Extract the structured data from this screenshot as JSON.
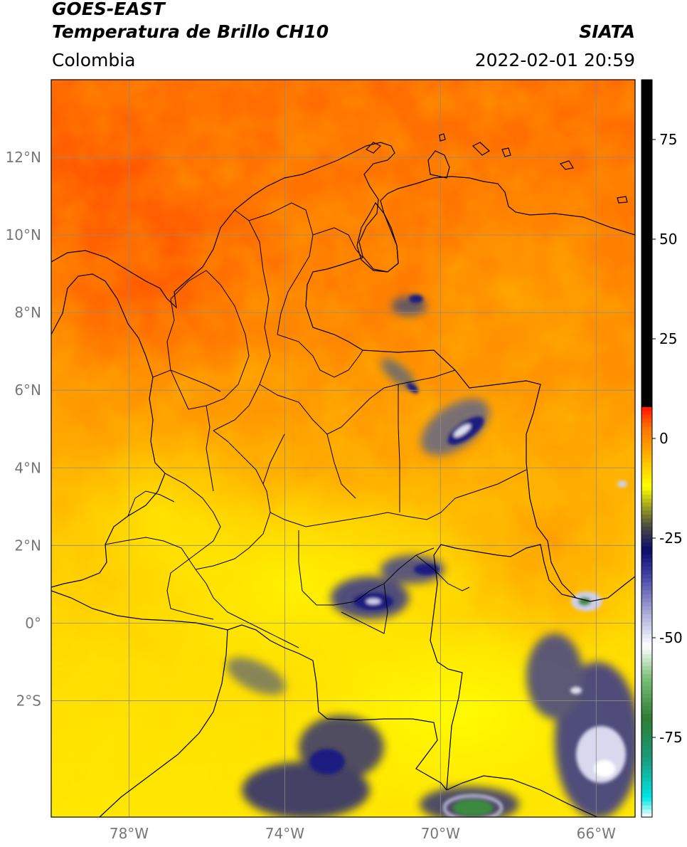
{
  "header": {
    "satellite": "GOES-EAST",
    "product": "Temperatura de Brillo CH10",
    "organization": "SIATA",
    "region": "Colombia",
    "timestamp": "2022-02-01 20:59"
  },
  "map": {
    "lon_range": [
      -80,
      -65
    ],
    "lat_range": [
      -5,
      14
    ],
    "lon_ticks": [
      {
        "value": -78,
        "label": "78°W"
      },
      {
        "value": -74,
        "label": "74°W"
      },
      {
        "value": -70,
        "label": "70°W"
      },
      {
        "value": -66,
        "label": "66°W"
      }
    ],
    "lat_ticks": [
      {
        "value": 12,
        "label": "12°N"
      },
      {
        "value": 10,
        "label": "10°N"
      },
      {
        "value": 8,
        "label": "8°N"
      },
      {
        "value": 6,
        "label": "6°N"
      },
      {
        "value": 4,
        "label": "4°N"
      },
      {
        "value": 2,
        "label": "2°N"
      },
      {
        "value": 0,
        "label": "0°"
      },
      {
        "value": -2,
        "label": "2°S"
      }
    ]
  },
  "colorbar": {
    "range": [
      -95,
      90
    ],
    "ticks": [
      {
        "value": 75,
        "label": "75"
      },
      {
        "value": 50,
        "label": "50"
      },
      {
        "value": 25,
        "label": "25"
      },
      {
        "value": 0,
        "label": "0"
      },
      {
        "value": -25,
        "label": "-25"
      },
      {
        "value": -50,
        "label": "-50"
      },
      {
        "value": -75,
        "label": "-75"
      }
    ],
    "stops": [
      {
        "value": -95,
        "color": "#ffffff"
      },
      {
        "value": -90,
        "color": "#00e5e5"
      },
      {
        "value": -80,
        "color": "#1a9a7a"
      },
      {
        "value": -70,
        "color": "#2e7d32"
      },
      {
        "value": -60,
        "color": "#7cc07a"
      },
      {
        "value": -52,
        "color": "#ffffff"
      },
      {
        "value": -45,
        "color": "#b8b8e0"
      },
      {
        "value": -35,
        "color": "#4a4aa8"
      },
      {
        "value": -28,
        "color": "#0a0a6e"
      },
      {
        "value": -22,
        "color": "#4a4a40"
      },
      {
        "value": -17,
        "color": "#a0a020"
      },
      {
        "value": -12,
        "color": "#ffff00"
      },
      {
        "value": -4,
        "color": "#ffb000"
      },
      {
        "value": 3,
        "color": "#ff7000"
      },
      {
        "value": 8,
        "color": "#ff1000"
      },
      {
        "value": 8.01,
        "color": "#000000"
      },
      {
        "value": 90,
        "color": "#000000"
      }
    ]
  }
}
